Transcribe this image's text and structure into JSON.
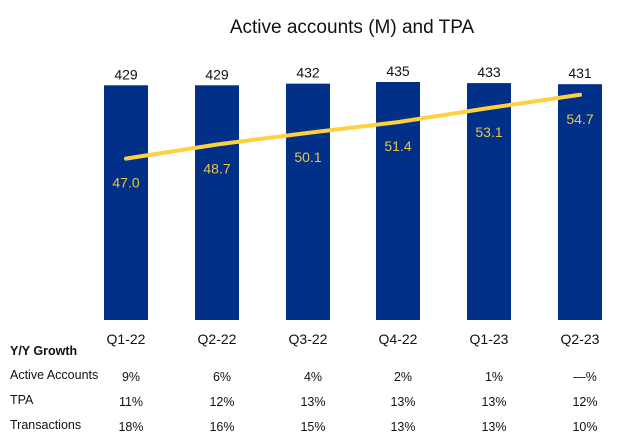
{
  "chart_data": {
    "type": "bar",
    "title": "Active accounts (M) and TPA",
    "categories": [
      "Q1-22",
      "Q2-22",
      "Q3-22",
      "Q4-22",
      "Q1-23",
      "Q2-23"
    ],
    "series": [
      {
        "name": "Active accounts (M)",
        "type": "bar",
        "values": [
          429,
          429,
          432,
          435,
          433,
          431
        ],
        "color": "#003087"
      },
      {
        "name": "TPA",
        "type": "line",
        "values": [
          47.0,
          48.7,
          50.1,
          51.4,
          53.1,
          54.7
        ],
        "color": "#FFD140"
      }
    ],
    "bar_labels": [
      "429",
      "429",
      "432",
      "435",
      "433",
      "431"
    ],
    "line_labels": [
      "47.0",
      "48.7",
      "50.1",
      "51.4",
      "53.1",
      "54.7"
    ],
    "ylim": [
      0,
      435
    ],
    "grid": false,
    "legend": "none"
  },
  "table": {
    "header": "Y/Y Growth",
    "rows": [
      {
        "label": "Active Accounts",
        "values": [
          "9%",
          "6%",
          "4%",
          "2%",
          "1%",
          "—%"
        ]
      },
      {
        "label": "TPA",
        "values": [
          "11%",
          "12%",
          "13%",
          "13%",
          "13%",
          "12%"
        ]
      },
      {
        "label": "Transactions",
        "values": [
          "18%",
          "16%",
          "15%",
          "13%",
          "13%",
          "10%"
        ]
      }
    ]
  }
}
